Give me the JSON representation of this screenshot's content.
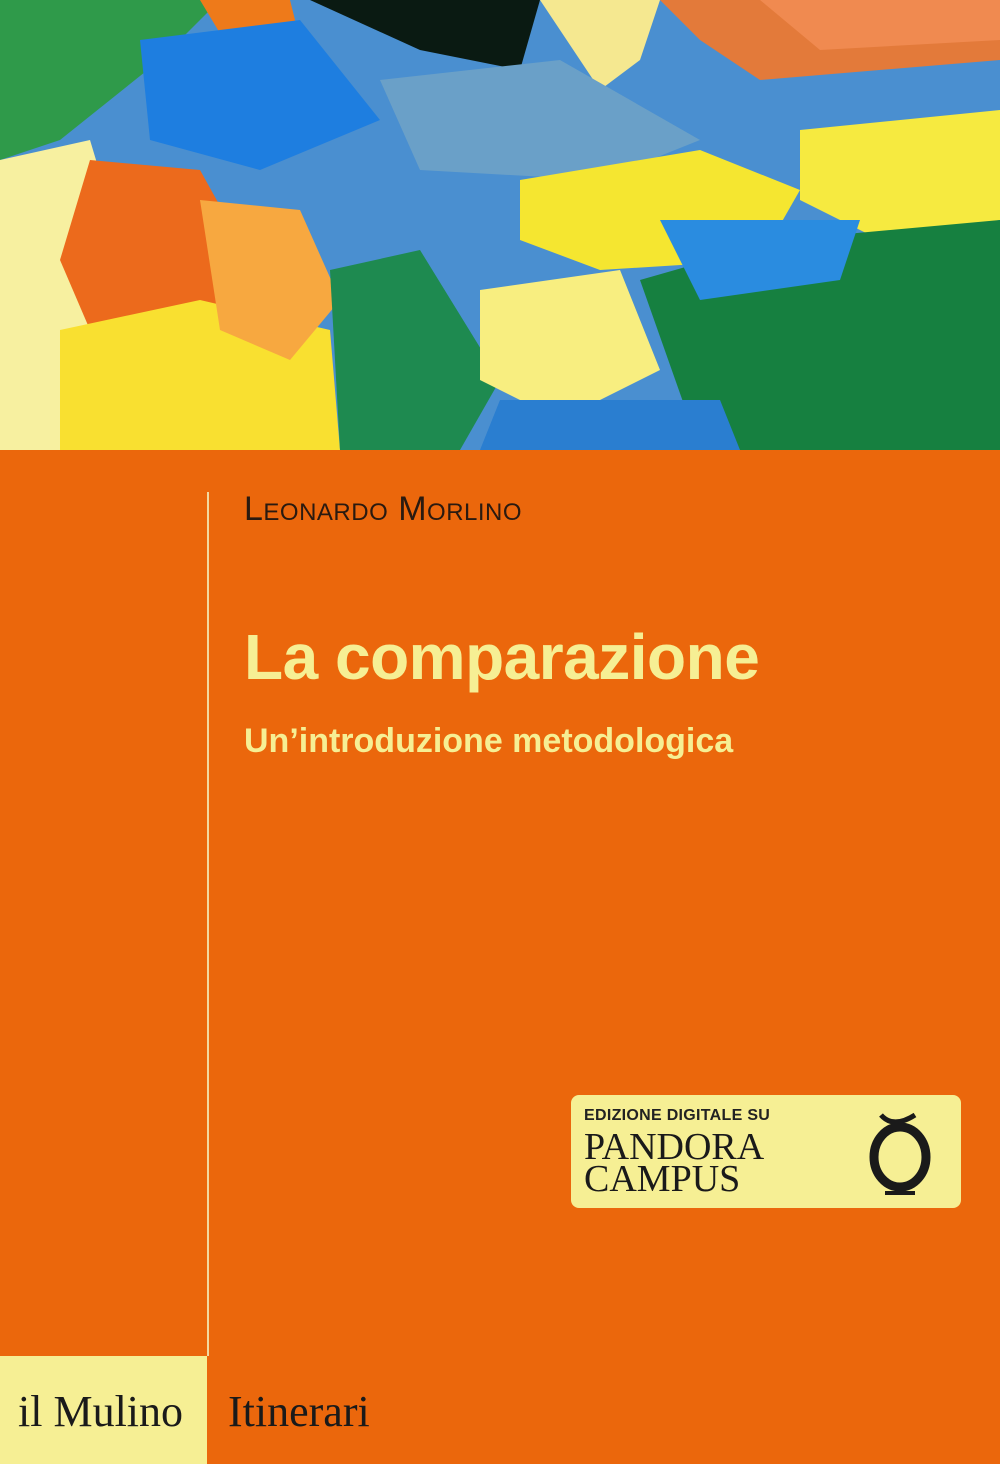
{
  "author": "Leonardo Morlino",
  "title": "La comparazione",
  "subtitle": "Un’introduzione metodologica",
  "badge": {
    "pre": "EDIZIONE DIGITALE SU",
    "line1": "PANDORA",
    "line2": "CAMPUS",
    "logo_icon": "pandora-jar-icon"
  },
  "publisher": "il Mulino",
  "series": "Itinerari",
  "colors": {
    "background": "#eb670c",
    "accent": "#f6ef94"
  }
}
